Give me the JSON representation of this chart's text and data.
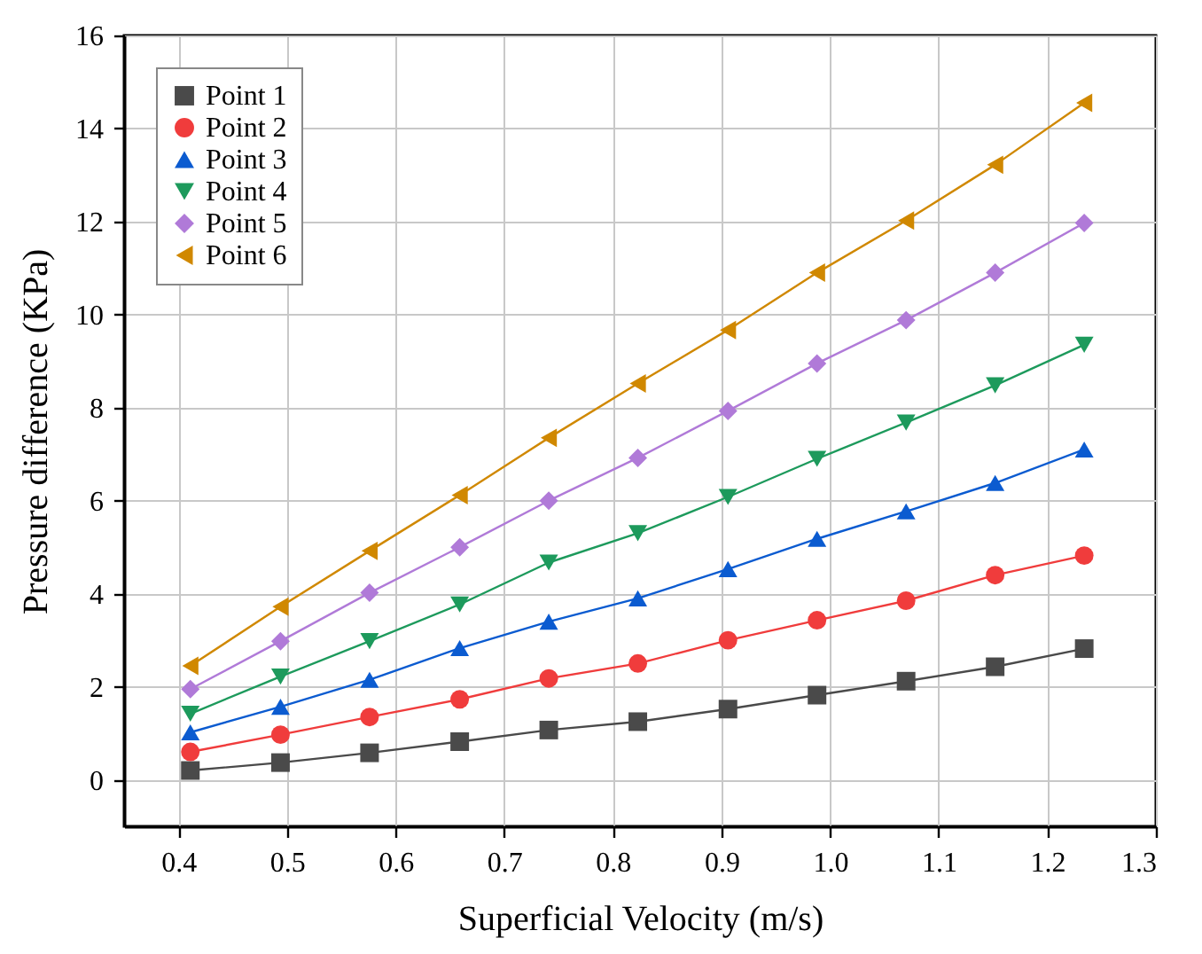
{
  "chart_data": {
    "type": "line",
    "xlabel": "Superficial Velocity (m/s)",
    "ylabel": "Pressure difference (KPa)",
    "x": [
      0.411,
      0.494,
      0.576,
      0.659,
      0.741,
      0.823,
      0.906,
      0.988,
      1.07,
      1.152,
      1.234
    ],
    "series": [
      {
        "name": "Point 1",
        "color": "#4a4a4a",
        "marker": "square",
        "values": [
          0.2,
          0.37,
          0.58,
          0.82,
          1.07,
          1.25,
          1.52,
          1.82,
          2.12,
          2.43,
          2.82
        ]
      },
      {
        "name": "Point 2",
        "color": "#f03c3c",
        "marker": "circle",
        "values": [
          0.6,
          0.97,
          1.35,
          1.73,
          2.18,
          2.5,
          3.0,
          3.43,
          3.85,
          4.4,
          4.82
        ]
      },
      {
        "name": "Point 3",
        "color": "#0b5bd0",
        "marker": "triangle-up",
        "values": [
          1.02,
          1.57,
          2.15,
          2.83,
          3.4,
          3.9,
          4.53,
          5.18,
          5.77,
          6.38,
          7.1
        ]
      },
      {
        "name": "Point 4",
        "color": "#1d9a5c",
        "marker": "triangle-down",
        "values": [
          1.42,
          2.22,
          2.98,
          3.77,
          4.67,
          5.3,
          6.08,
          6.9,
          7.68,
          8.48,
          9.35
        ]
      },
      {
        "name": "Point 5",
        "color": "#b07ad8",
        "marker": "diamond",
        "values": [
          1.95,
          2.98,
          4.02,
          5.0,
          6.0,
          6.92,
          7.93,
          8.95,
          9.88,
          10.9,
          11.97
        ]
      },
      {
        "name": "Point 6",
        "color": "#d08800",
        "marker": "triangle-left",
        "values": [
          2.45,
          3.72,
          4.92,
          6.12,
          7.35,
          8.52,
          9.67,
          10.9,
          12.02,
          13.22,
          14.55
        ]
      }
    ],
    "xlim": [
      0.35,
      1.3
    ],
    "xticks": [
      0.4,
      0.5,
      0.6,
      0.7,
      0.8,
      0.9,
      {
        "value": 1,
        "label": "1.0"
      },
      1.1,
      1.2,
      1.3
    ],
    "ylim": [
      -1,
      16
    ],
    "yticks": [
      0,
      2,
      4,
      6,
      8,
      10,
      12,
      14,
      16
    ],
    "grid": true,
    "legend": "top left",
    "line_style": "solid"
  }
}
